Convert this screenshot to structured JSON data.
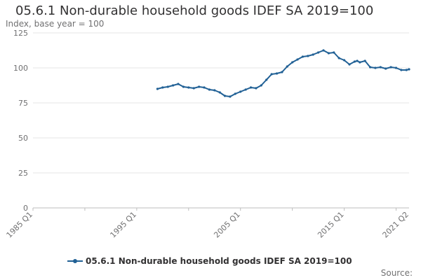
{
  "chart_data": {
    "type": "line",
    "title": "05.6.1 Non-durable household goods IDEF SA 2019=100",
    "subtitle": "Index, base year = 100",
    "ylim": [
      0,
      125
    ],
    "yticks": [
      0,
      25,
      50,
      75,
      100,
      125
    ],
    "x_range": [
      1985.0,
      2021.25
    ],
    "xtick_labels": [
      "1985 Q1",
      "1995 Q1",
      "2005 Q1",
      "2015 Q1",
      "2021 Q2"
    ],
    "xtick_values": [
      1985.0,
      1995.0,
      2005.0,
      2015.0,
      2021.25
    ],
    "minor_ticks": [
      1985,
      1990,
      1995,
      2000,
      2005,
      2010,
      2015,
      2020
    ],
    "grid": true,
    "legend_position": "bottom",
    "series": [
      {
        "name": "05.6.1 Non-durable household goods IDEF SA 2019=100",
        "color": "#206095",
        "x": [
          1997.0,
          1997.5,
          1998.0,
          1998.5,
          1999.0,
          1999.5,
          2000.0,
          2000.5,
          2001.0,
          2001.5,
          2002.0,
          2002.5,
          2003.0,
          2003.5,
          2004.0,
          2004.5,
          2005.0,
          2005.5,
          2006.0,
          2006.5,
          2007.0,
          2007.5,
          2008.0,
          2008.5,
          2009.0,
          2009.5,
          2010.0,
          2010.5,
          2011.0,
          2011.5,
          2012.0,
          2012.5,
          2013.0,
          2013.5,
          2014.0,
          2014.5,
          2015.0,
          2015.5,
          2016.0,
          2016.25,
          2016.5,
          2017.0,
          2017.5,
          2018.0,
          2018.5,
          2019.0,
          2019.5,
          2020.0,
          2020.5,
          2021.0,
          2021.25
        ],
        "values": [
          85,
          86,
          86.5,
          87.5,
          88.5,
          86.5,
          86,
          85.5,
          86.5,
          86,
          84.5,
          84,
          82.5,
          80,
          79.5,
          81.5,
          83,
          84.5,
          86,
          85.5,
          87.5,
          91.5,
          95.5,
          96,
          97,
          101,
          104,
          106,
          108,
          108.5,
          109.5,
          111,
          112.5,
          110.5,
          111,
          107,
          105.5,
          102.5,
          104.5,
          105,
          104,
          105,
          100.5,
          100,
          100.5,
          99.5,
          100.5,
          100,
          98.5,
          98.5,
          99
        ]
      }
    ]
  },
  "legend": {
    "label": "05.6.1 Non-durable household goods IDEF SA 2019=100"
  },
  "source": {
    "label": "Source:"
  }
}
